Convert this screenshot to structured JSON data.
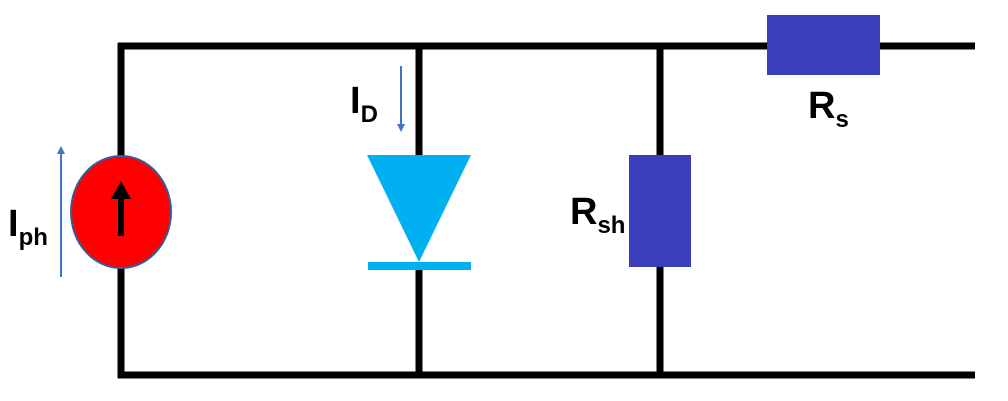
{
  "labels": {
    "photocurrent": {
      "main": "I",
      "sub": "ph"
    },
    "diode_current": {
      "main": "I",
      "sub": "D"
    },
    "shunt_resistor": {
      "main": "R",
      "sub": "sh"
    },
    "series_resistor": {
      "main": "R",
      "sub": "s"
    }
  },
  "colors": {
    "wire": "#000000",
    "current_source_fill": "#ff0000",
    "current_source_stroke": "#3a5a9a",
    "diode": "#00b0f0",
    "resistor": "#3a3eb8",
    "current_arrow": "#4472c4"
  },
  "icons": {
    "source_arrow": "arrow-up-icon",
    "photocurrent_arrow": "arrow-up-icon",
    "diode_current_arrow": "arrow-down-icon"
  }
}
